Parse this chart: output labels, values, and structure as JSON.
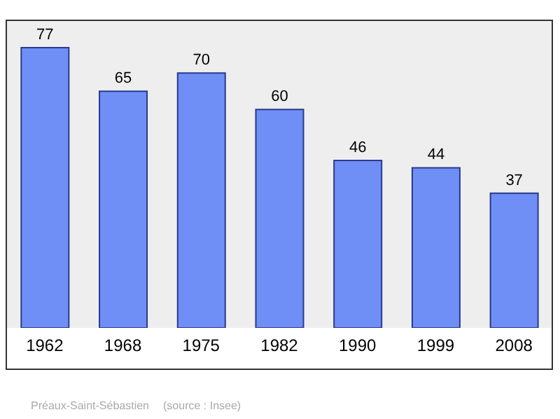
{
  "chart_data": {
    "type": "bar",
    "categories": [
      "1962",
      "1968",
      "1975",
      "1982",
      "1990",
      "1999",
      "2008"
    ],
    "values": [
      77,
      65,
      70,
      60,
      46,
      44,
      37
    ],
    "color": "#6f8ff7",
    "data_labels": true,
    "annotations": [
      "Préaux-Saint-Sébastien",
      "(source : Insee)"
    ]
  }
}
